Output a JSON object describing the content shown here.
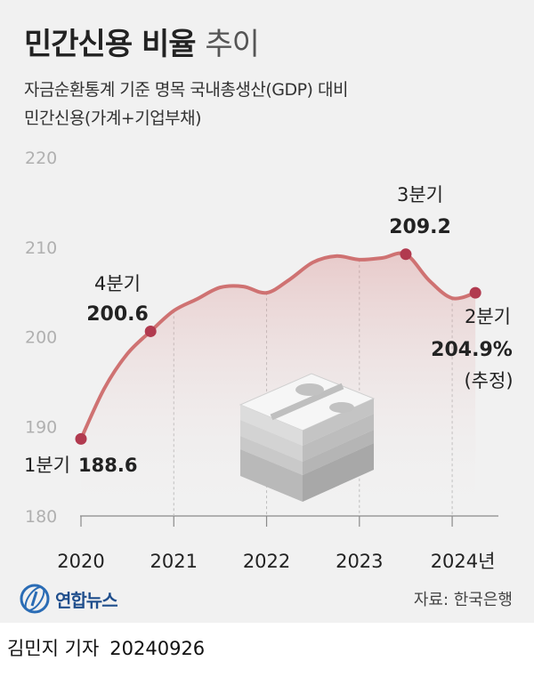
{
  "header": {
    "title_bold": "민간신용 비율",
    "title_light": "추이",
    "subtitle_line1": "자금순환통계 기준 명목 국내총생산(GDP) 대비",
    "subtitle_line2": "민간신용(가계+기업부채)"
  },
  "footer": {
    "logo": "연합뉴스",
    "source": "자료: 한국은행",
    "reporter": "김민지 기자",
    "date": "20240926"
  },
  "colors": {
    "line": "#cf7272",
    "marker": "#b13a4f",
    "background": "#f1f1f1",
    "area": "#d98b8b"
  },
  "chart_data": {
    "type": "area",
    "y_ticks": [
      "220",
      "210",
      "200",
      "190",
      "180"
    ],
    "ylim": [
      180,
      220
    ],
    "x_ticks": [
      "2020",
      "2021",
      "2022",
      "2023",
      "2024년"
    ],
    "xlim": [
      2020.0,
      2024.45
    ],
    "grid": false,
    "points": [
      {
        "x": 2020.0,
        "y": 188.6
      },
      {
        "x": 2020.25,
        "y": 194.2
      },
      {
        "x": 2020.5,
        "y": 198.1
      },
      {
        "x": 2020.75,
        "y": 200.6
      },
      {
        "x": 2021.0,
        "y": 202.9
      },
      {
        "x": 2021.25,
        "y": 204.2
      },
      {
        "x": 2021.5,
        "y": 205.5
      },
      {
        "x": 2021.75,
        "y": 205.6
      },
      {
        "x": 2022.0,
        "y": 204.9
      },
      {
        "x": 2022.25,
        "y": 206.4
      },
      {
        "x": 2022.5,
        "y": 208.3
      },
      {
        "x": 2022.75,
        "y": 209.0
      },
      {
        "x": 2023.0,
        "y": 208.6
      },
      {
        "x": 2023.25,
        "y": 208.8
      },
      {
        "x": 2023.5,
        "y": 209.2
      },
      {
        "x": 2023.75,
        "y": 206.3
      },
      {
        "x": 2024.0,
        "y": 204.3
      },
      {
        "x": 2024.25,
        "y": 204.9
      }
    ],
    "annotations": [
      {
        "label": "1분기",
        "value": "188.6",
        "x": 2020.0,
        "y": 188.6
      },
      {
        "label": "4분기",
        "value": "200.6",
        "x": 2020.75,
        "y": 200.6
      },
      {
        "label": "3분기",
        "value": "209.2",
        "x": 2023.5,
        "y": 209.2
      },
      {
        "label": "2분기",
        "value": "204.9%",
        "note": "(추정)",
        "x": 2024.25,
        "y": 204.9
      }
    ]
  }
}
